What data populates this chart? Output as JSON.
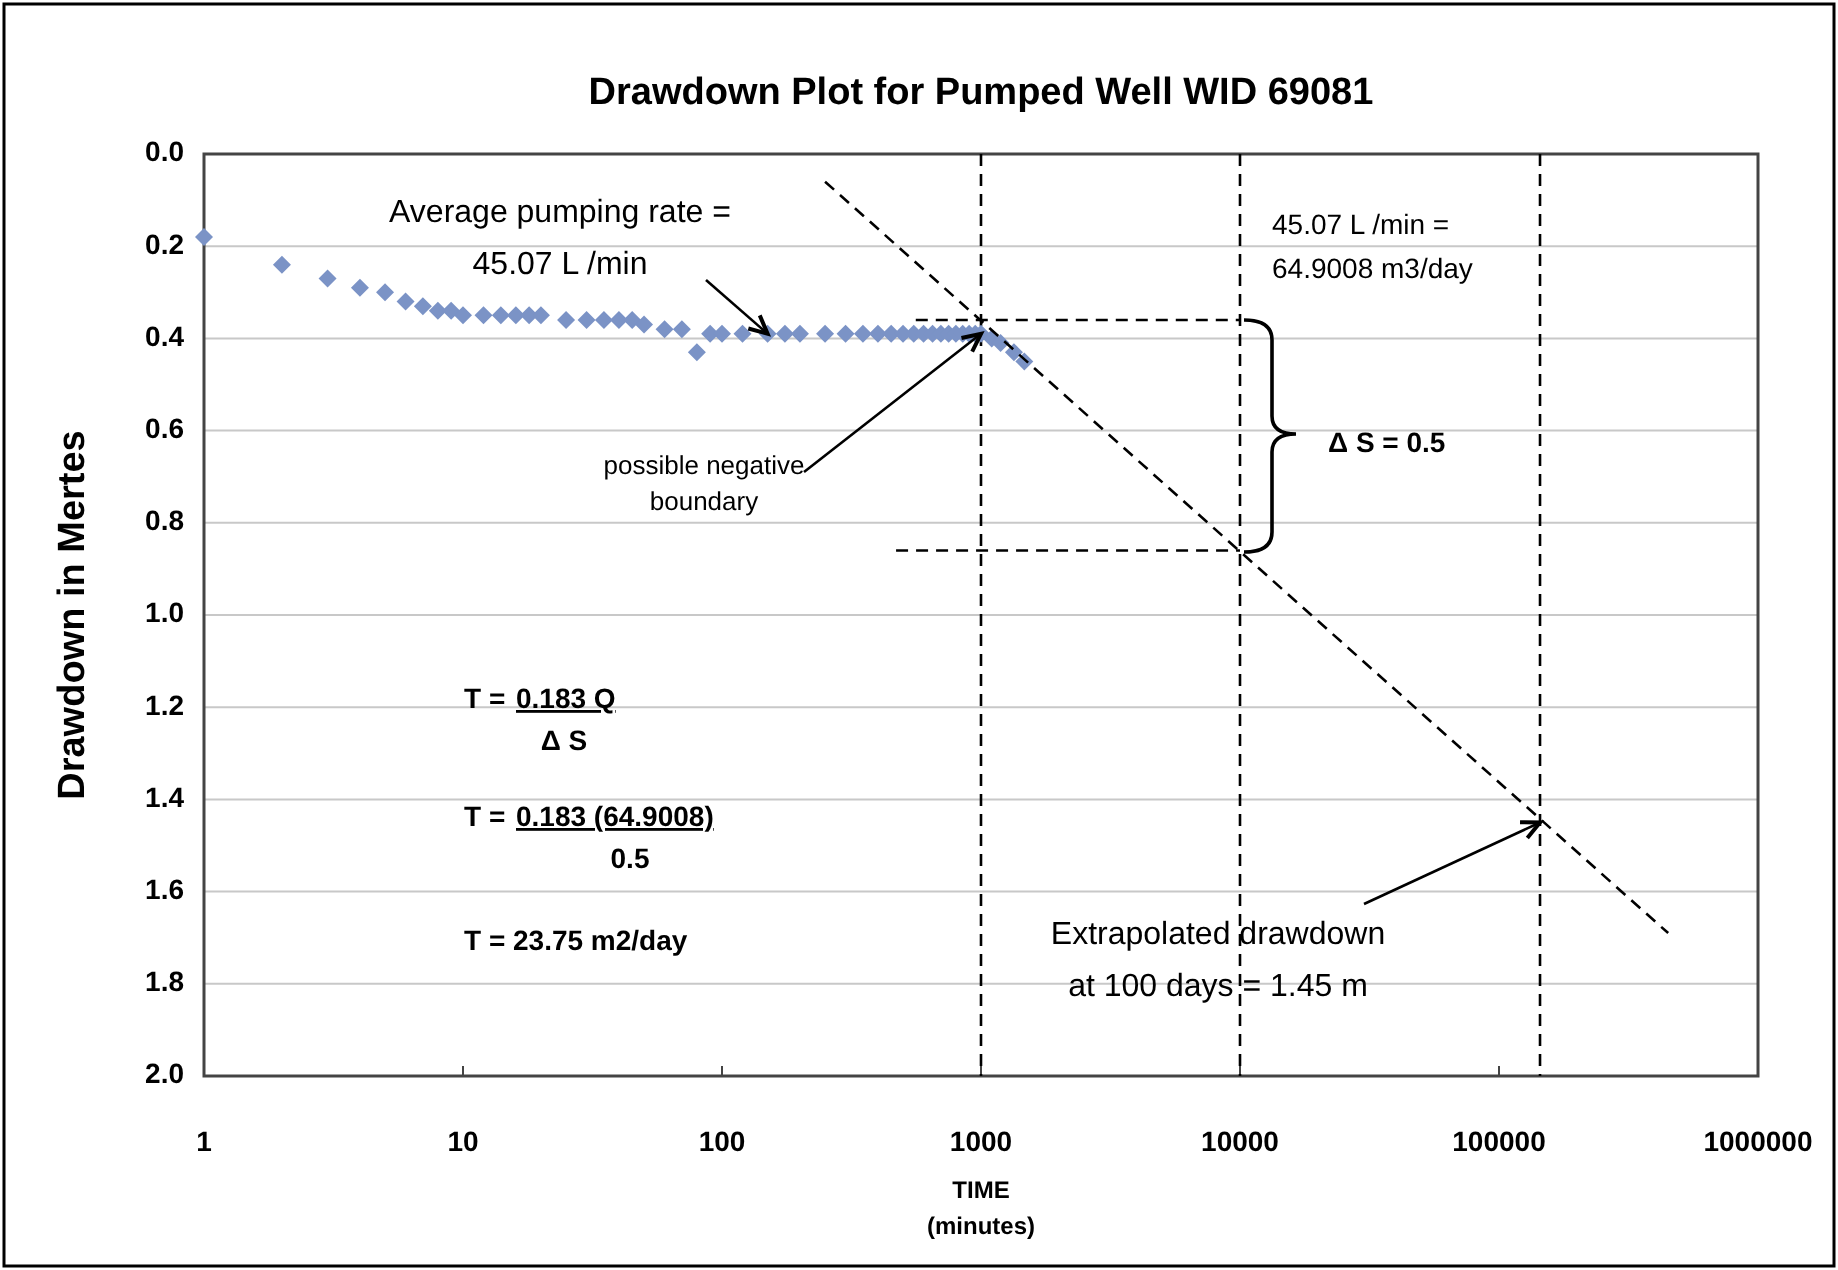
{
  "chart_data": {
    "type": "scatter",
    "title": "Drawdown Plot for Pumped Well WID 69081",
    "xlabel": "TIME\n(minutes)",
    "ylabel": "Drawdown in Mertes",
    "log": "x",
    "grid": "y",
    "xlim": [
      1,
      1000000
    ],
    "xticks": [
      1,
      10,
      100,
      1000,
      10000,
      100000,
      1000000
    ],
    "ylim": [
      2,
      0
    ],
    "yticks": [
      {
        "value": 0,
        "label": "0.0"
      },
      0.2,
      0.4,
      0.6,
      0.8,
      {
        "value": 1,
        "label": "1.0"
      },
      1.2,
      1.4,
      1.6,
      1.8,
      {
        "value": 2,
        "label": "2.0"
      }
    ],
    "series": [
      {
        "color": "#7b93c6",
        "marker": "diamond",
        "x": [
          1,
          2,
          3,
          4,
          5,
          6,
          7,
          8,
          9,
          10,
          12,
          14,
          16,
          18,
          20,
          25,
          30,
          35,
          40,
          45,
          50,
          60,
          70,
          80,
          90,
          100,
          120,
          150,
          175,
          200,
          250,
          300,
          350,
          400,
          450,
          500,
          550,
          600,
          650,
          700,
          750,
          800,
          850,
          900,
          950,
          1000,
          1100,
          1190,
          1340,
          1470
        ],
        "values": [
          0.18,
          0.24,
          0.27,
          0.29,
          0.3,
          0.32,
          0.33,
          0.34,
          0.34,
          0.35,
          0.35,
          0.35,
          0.35,
          0.35,
          0.35,
          0.36,
          0.36,
          0.36,
          0.36,
          0.36,
          0.37,
          0.38,
          0.38,
          0.43,
          0.39,
          0.39,
          0.39,
          0.39,
          0.39,
          0.39,
          0.39,
          0.39,
          0.39,
          0.39,
          0.39,
          0.39,
          0.39,
          0.39,
          0.39,
          0.39,
          0.39,
          0.39,
          0.39,
          0.39,
          0.39,
          0.39,
          0.4,
          0.41,
          0.43,
          0.45
        ]
      },
      {
        "type": "line",
        "color": "#000000",
        "marker": "none",
        "line_style": "dashed",
        "x": [
          250,
          450000
        ],
        "values": [
          0.06,
          1.69
        ]
      },
      {
        "type": "line",
        "color": "#000000",
        "marker": "none",
        "line_style": "dashed",
        "x": [
          560,
          10000
        ],
        "values": [
          0.36,
          0.36
        ]
      },
      {
        "type": "line",
        "color": "#000000",
        "marker": "none",
        "line_style": "dashed",
        "x": [
          470,
          10000
        ],
        "values": [
          0.86,
          0.86
        ]
      }
    ],
    "ref_lines": [
      {
        "axis": "x",
        "value": 1000,
        "color": "#000000",
        "line_style": "dashed"
      },
      {
        "axis": "x",
        "value": 10000,
        "color": "#000000",
        "line_style": "dashed"
      },
      {
        "axis": "x",
        "value": 144000,
        "color": "#000000",
        "line_style": "dashed"
      }
    ],
    "annotations": [
      {
        "text": "Average pumping rate =\n45.07  L /min",
        "x": 150,
        "y": 0.39
      },
      {
        "text": "possible negative\nboundary",
        "x": 1000,
        "y": 0.39
      },
      "45.07   L /min =\n64.9008 m3/day",
      "Δ S = 0.5",
      "T =",
      "0.183 Q",
      "Δ S",
      "T =",
      "0.183 (64.9008)",
      "0.5",
      "T =  23.75 m2/day",
      {
        "text": "Extrapolated drawdown\nat 100 days = 1.45 m",
        "x": 144000,
        "y": 1.45
      }
    ]
  }
}
